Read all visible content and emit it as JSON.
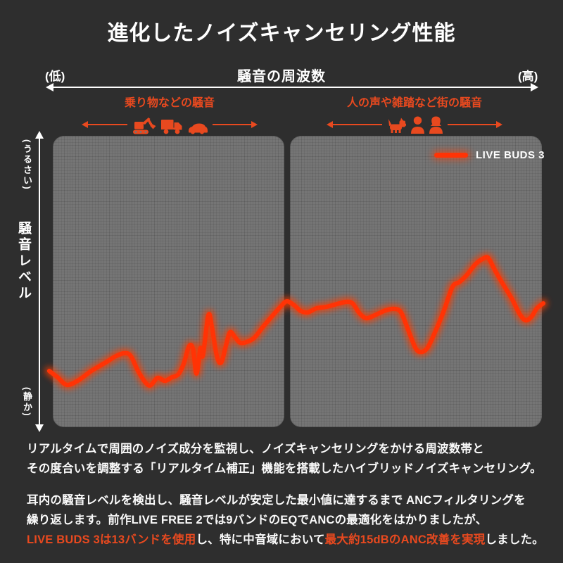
{
  "title": "進化したノイズキャンセリング性能",
  "accent_color": "#e8491f",
  "line_color": "#ff3305",
  "background_color": "#2e2e2e",
  "panel_color": "#757575",
  "frequency_axis": {
    "label": "騒音の周波数",
    "left_end": "(低)",
    "right_end": "(高)"
  },
  "level_axis": {
    "label": "騒音レベル",
    "top_end": "(うるさい)",
    "bottom_end": "(静か)"
  },
  "regions": [
    {
      "label": "乗り物などの騒音",
      "icons": [
        "excavator-icon",
        "truck-icon",
        "car-icon"
      ]
    },
    {
      "label": "人の声や雑踏など街の騒音",
      "icons": [
        "dog-icon",
        "man-icon",
        "woman-icon"
      ]
    }
  ],
  "legend": {
    "label": "LIVE BUDS 3"
  },
  "chart_data": {
    "type": "line",
    "title": "進化したノイズキャンセリング性能",
    "xlabel": "騒音の周波数 (低 → 高)",
    "ylabel": "騒音レベル (静か → うるさい)",
    "x_range": [
      0,
      100
    ],
    "y_range": [
      0,
      100
    ],
    "grid": "fine gray mesh on two rounded panels (low-frequency panel / high-frequency panel)",
    "legend_position": "top-right",
    "series": [
      {
        "name": "LIVE BUDS 3",
        "color": "#ff3305",
        "points": [
          [
            0,
            19.3
          ],
          [
            1.7,
            17.1
          ],
          [
            3.6,
            14.5
          ],
          [
            6,
            16.2
          ],
          [
            8.5,
            19.3
          ],
          [
            11.4,
            22.2
          ],
          [
            13.5,
            24.4
          ],
          [
            15.2,
            25.4
          ],
          [
            16.5,
            24.4
          ],
          [
            18.2,
            18.6
          ],
          [
            20.2,
            14.3
          ],
          [
            21.9,
            16.9
          ],
          [
            23.4,
            15.9
          ],
          [
            24.8,
            17.1
          ],
          [
            26.1,
            18.1
          ],
          [
            27.2,
            21.7
          ],
          [
            28.3,
            27.8
          ],
          [
            29.1,
            26.8
          ],
          [
            29.8,
            18.4
          ],
          [
            30.6,
            27.1
          ],
          [
            31.1,
            24.6
          ],
          [
            32.2,
            38.4
          ],
          [
            32.9,
            34.5
          ],
          [
            33.9,
            24.6
          ],
          [
            34.8,
            22.2
          ],
          [
            35.8,
            28.3
          ],
          [
            36.6,
            32.6
          ],
          [
            37.6,
            30.9
          ],
          [
            38.6,
            29
          ],
          [
            39.9,
            29.2
          ],
          [
            41.5,
            30.7
          ],
          [
            43.2,
            34.3
          ],
          [
            45,
            37.9
          ],
          [
            46.9,
            41.5
          ],
          [
            48.1,
            43.2
          ],
          [
            49.6,
            41.8
          ],
          [
            50.9,
            39.9
          ],
          [
            52.3,
            39.4
          ],
          [
            54.1,
            40.8
          ],
          [
            56.1,
            41.3
          ],
          [
            58.3,
            42.3
          ],
          [
            60.1,
            43
          ],
          [
            61.4,
            42.5
          ],
          [
            62.8,
            39.1
          ],
          [
            64.2,
            37.4
          ],
          [
            66.1,
            38.6
          ],
          [
            68.1,
            40.1
          ],
          [
            69.9,
            40.6
          ],
          [
            71.2,
            39.4
          ],
          [
            72.6,
            33.6
          ],
          [
            74.1,
            27.3
          ],
          [
            75.2,
            25.8
          ],
          [
            76.5,
            27.1
          ],
          [
            77.9,
            31.9
          ],
          [
            79.8,
            39.6
          ],
          [
            81.6,
            48.1
          ],
          [
            83,
            49.8
          ],
          [
            84.5,
            52.2
          ],
          [
            86.3,
            56
          ],
          [
            88,
            58
          ],
          [
            88.9,
            58
          ],
          [
            90.2,
            53.9
          ],
          [
            91.7,
            49.5
          ],
          [
            93.6,
            44.2
          ],
          [
            95.2,
            38.9
          ],
          [
            96.4,
            36.7
          ],
          [
            97.6,
            37.9
          ],
          [
            98.7,
            40.8
          ],
          [
            100,
            42.5
          ]
        ]
      }
    ]
  },
  "body": {
    "p1_lines": [
      "リアルタイムで周囲のノイズ成分を監視し、ノイズキャンセリングをかける周波数帯と",
      "その度合いを調整する「リアルタイム補正」機能を搭載したハイブリッドノイズキャンセリング。"
    ],
    "p2_lines": [
      "耳内の騒音レベルを検出し、騒音レベルが安定した最小値に達するまで ANCフィルタリングを",
      "繰り返します。前作LIVE FREE 2では9バンドのEQでANCの最適化をはかりましたが、"
    ],
    "p2_line3_segments": [
      {
        "text": "LIVE BUDS 3は13バンドを使用",
        "highlight": true
      },
      {
        "text": "し、特に中音域において",
        "highlight": false
      },
      {
        "text": "最大約15dBのANC改善を実現",
        "highlight": true
      },
      {
        "text": "しました。",
        "highlight": false
      }
    ]
  }
}
